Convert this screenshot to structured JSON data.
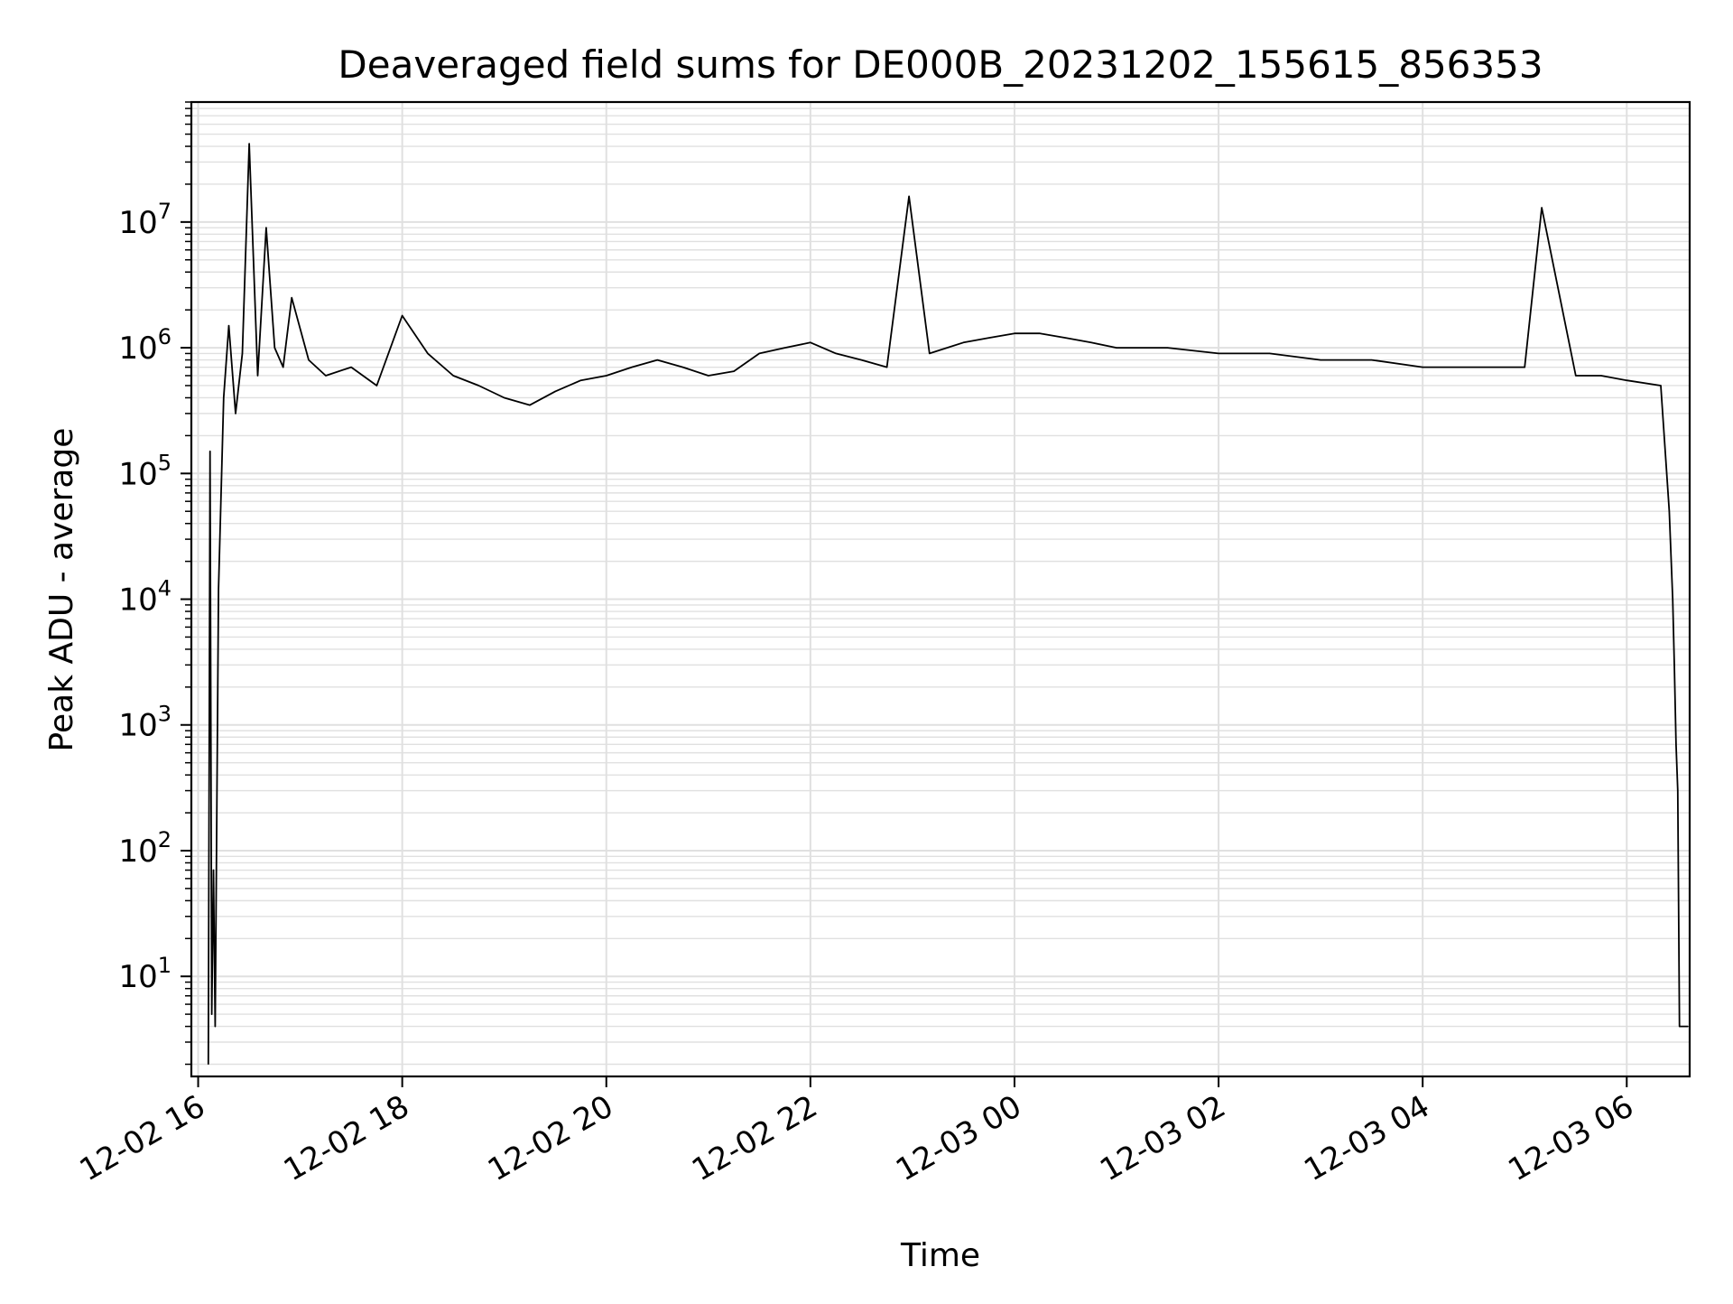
{
  "chart_data": {
    "type": "line",
    "title": "Deaveraged field sums for DE000B_20231202_155615_856353",
    "xlabel": "Time",
    "ylabel": "Peak ADU - average",
    "x_scale": "time",
    "y_scale": "log",
    "xlim": [
      "2023-12-02 15:56",
      "2023-12-03 06:37"
    ],
    "ylim": [
      1.6,
      90000000
    ],
    "grid": true,
    "legend": "none",
    "line_color": "#000000",
    "grid_color": "#e0e0e0",
    "x_ticks": [
      {
        "t": "2023-12-02 16:00",
        "label": "12-02 16"
      },
      {
        "t": "2023-12-02 18:00",
        "label": "12-02 18"
      },
      {
        "t": "2023-12-02 20:00",
        "label": "12-02 20"
      },
      {
        "t": "2023-12-02 22:00",
        "label": "12-02 22"
      },
      {
        "t": "2023-12-03 00:00",
        "label": "12-03 00"
      },
      {
        "t": "2023-12-03 02:00",
        "label": "12-03 02"
      },
      {
        "t": "2023-12-03 04:00",
        "label": "12-03 04"
      },
      {
        "t": "2023-12-03 06:00",
        "label": "12-03 06"
      }
    ],
    "y_ticks": [
      {
        "value": 10,
        "base": "10",
        "exp": "1"
      },
      {
        "value": 100,
        "base": "10",
        "exp": "2"
      },
      {
        "value": 1000,
        "base": "10",
        "exp": "3"
      },
      {
        "value": 10000,
        "base": "10",
        "exp": "4"
      },
      {
        "value": 100000,
        "base": "10",
        "exp": "5"
      },
      {
        "value": 1000000,
        "base": "10",
        "exp": "6"
      },
      {
        "value": 10000000,
        "base": "10",
        "exp": "7"
      }
    ],
    "series": [
      {
        "x": [
          "2023-12-02 16:06",
          "2023-12-02 16:07",
          "2023-12-02 16:08",
          "2023-12-02 16:09",
          "2023-12-02 16:10",
          "2023-12-02 16:12",
          "2023-12-02 16:15",
          "2023-12-02 16:18",
          "2023-12-02 16:22",
          "2023-12-02 16:26",
          "2023-12-02 16:30",
          "2023-12-02 16:35",
          "2023-12-02 16:40",
          "2023-12-02 16:45",
          "2023-12-02 16:50",
          "2023-12-02 16:55",
          "2023-12-02 17:05",
          "2023-12-02 17:15",
          "2023-12-02 17:30",
          "2023-12-02 17:45",
          "2023-12-02 18:00",
          "2023-12-02 18:15",
          "2023-12-02 18:30",
          "2023-12-02 18:45",
          "2023-12-02 19:00",
          "2023-12-02 19:15",
          "2023-12-02 19:30",
          "2023-12-02 19:45",
          "2023-12-02 20:00",
          "2023-12-02 20:15",
          "2023-12-02 20:30",
          "2023-12-02 20:45",
          "2023-12-02 21:00",
          "2023-12-02 21:15",
          "2023-12-02 21:30",
          "2023-12-02 21:45",
          "2023-12-02 22:00",
          "2023-12-02 22:15",
          "2023-12-02 22:30",
          "2023-12-02 22:45",
          "2023-12-02 22:58",
          "2023-12-02 23:10",
          "2023-12-02 23:30",
          "2023-12-02 23:45",
          "2023-12-03 00:00",
          "2023-12-03 00:15",
          "2023-12-03 00:30",
          "2023-12-03 00:45",
          "2023-12-03 01:00",
          "2023-12-03 01:30",
          "2023-12-03 02:00",
          "2023-12-03 02:30",
          "2023-12-03 03:00",
          "2023-12-03 03:30",
          "2023-12-03 04:00",
          "2023-12-03 04:30",
          "2023-12-03 05:00",
          "2023-12-03 05:10",
          "2023-12-03 05:30",
          "2023-12-03 05:45",
          "2023-12-03 06:00",
          "2023-12-03 06:20",
          "2023-12-03 06:25",
          "2023-12-03 06:27",
          "2023-12-03 06:28",
          "2023-12-03 06:29",
          "2023-12-03 06:30",
          "2023-12-03 06:31",
          "2023-12-03 06:32",
          "2023-12-03 06:36"
        ],
        "y": [
          2,
          150000,
          5,
          70,
          4,
          12000,
          400000,
          1500000,
          300000,
          900000,
          42000000,
          600000,
          9000000,
          1000000,
          700000,
          2500000,
          800000,
          600000,
          700000,
          500000,
          1800000,
          900000,
          600000,
          500000,
          400000,
          350000,
          450000,
          550000,
          600000,
          700000,
          800000,
          700000,
          600000,
          650000,
          900000,
          1000000,
          1100000,
          900000,
          800000,
          700000,
          16000000,
          900000,
          1100000,
          1200000,
          1300000,
          1300000,
          1200000,
          1100000,
          1000000,
          1000000,
          900000,
          900000,
          800000,
          800000,
          700000,
          700000,
          700000,
          13000000,
          600000,
          600000,
          550000,
          500000,
          50000,
          10000,
          3000,
          700,
          300,
          4,
          4,
          4
        ]
      }
    ]
  }
}
